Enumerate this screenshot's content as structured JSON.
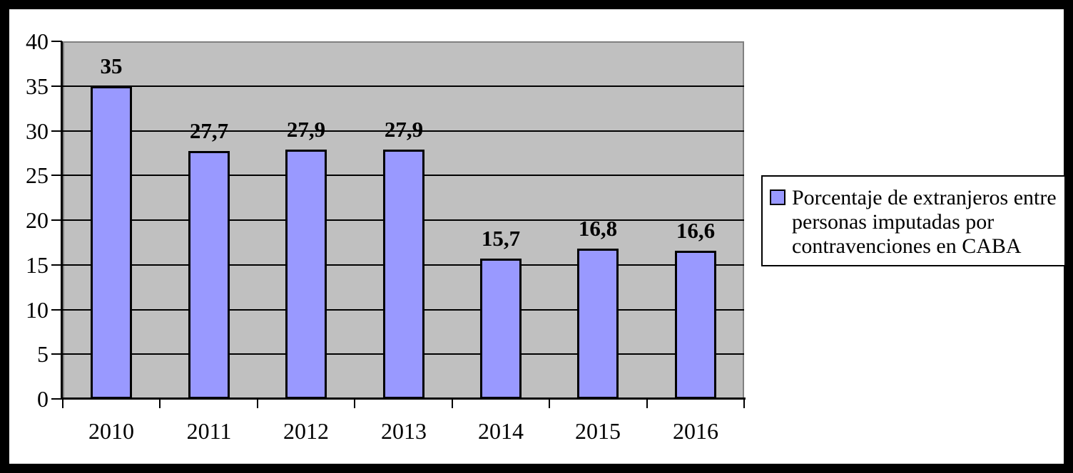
{
  "chart_data": {
    "type": "bar",
    "title": "",
    "xlabel": "",
    "ylabel": "",
    "categories": [
      "2010",
      "2011",
      "2012",
      "2013",
      "2014",
      "2015",
      "2016"
    ],
    "values": [
      35,
      27.7,
      27.9,
      27.9,
      15.7,
      16.8,
      16.6
    ],
    "value_labels": [
      "35",
      "27,7",
      "27,9",
      "27,9",
      "15,7",
      "16,8",
      "16,6"
    ],
    "series_name": "Porcentaje de extranjeros entre personas imputadas por contravenciones en CABA",
    "ylim": [
      0,
      40
    ],
    "ytick_step": 5,
    "ytick_labels": [
      "0",
      "5",
      "10",
      "15",
      "20",
      "25",
      "30",
      "35",
      "40"
    ],
    "grid": true,
    "legend_position": "right"
  },
  "legend": {
    "lines": [
      "Porcentaje de extranjeros entre",
      "personas imputadas por",
      "contravenciones en CABA"
    ]
  },
  "colors": {
    "bar_fill": "#9999ff",
    "bar_border": "#000000",
    "plot_background": "#c0c0c0",
    "plot_border": "#808080",
    "axis": "#000000",
    "gridline": "#000000",
    "outer_frame": "#000000",
    "canvas_background": "#ffffff"
  }
}
